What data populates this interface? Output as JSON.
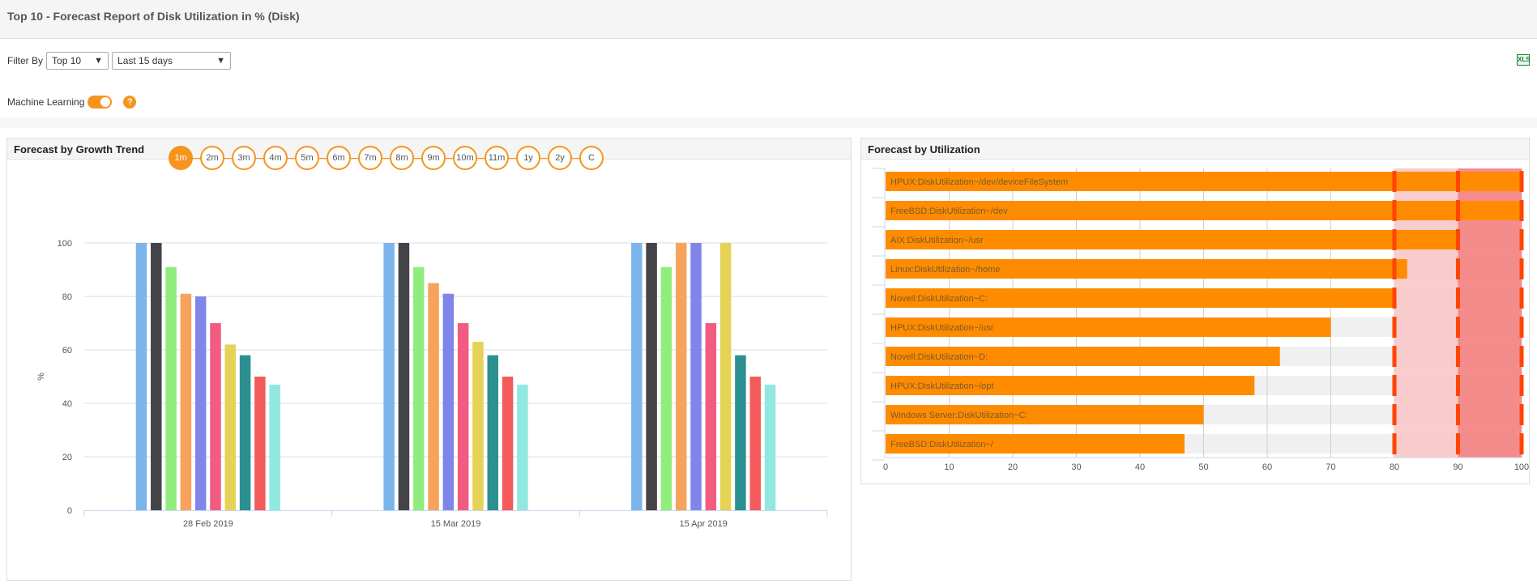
{
  "header": {
    "title": "Top 10 - Forecast Report of Disk Utilization in % (Disk)"
  },
  "filters": {
    "label": "Filter By",
    "top_select": "Top 10",
    "range_select": "Last 15 days",
    "excel_icon": "excel-export-icon",
    "excel_text": "XLS"
  },
  "machine_learning": {
    "label": "Machine Learning",
    "enabled": true,
    "help_text": "?"
  },
  "colors": {
    "accent": "#f7941d",
    "bar": "#ff8c00",
    "threshold_line": "#ff4500",
    "warning_zone": "#f8c8c8",
    "critical_zone": "#f47f80"
  },
  "growth_panel": {
    "title": "Forecast by Growth Trend",
    "periods": [
      "1m",
      "2m",
      "3m",
      "4m",
      "5m",
      "6m",
      "7m",
      "8m",
      "9m",
      "10m",
      "11m",
      "1y",
      "2y",
      "C"
    ],
    "active_period": "1m"
  },
  "util_panel": {
    "title": "Forecast by Utilization"
  },
  "chart_data": [
    {
      "type": "bar",
      "title": "Forecast by Growth Trend",
      "ylabel": "%",
      "xlabel": "",
      "ylim": [
        0,
        100
      ],
      "yticks": [
        0,
        20,
        40,
        60,
        80,
        100
      ],
      "grid": true,
      "categories": [
        "28 Feb 2019",
        "15 Mar 2019",
        "15 Apr 2019"
      ],
      "series": [
        {
          "color": "#7cb5ec",
          "values": [
            100,
            100,
            100
          ]
        },
        {
          "color": "#434348",
          "values": [
            100,
            100,
            100
          ]
        },
        {
          "color": "#90ed7d",
          "values": [
            91,
            91,
            91
          ]
        },
        {
          "color": "#f7a35c",
          "values": [
            81,
            85,
            100
          ]
        },
        {
          "color": "#8085e9",
          "values": [
            80,
            81,
            100
          ]
        },
        {
          "color": "#f15c80",
          "values": [
            70,
            70,
            70
          ]
        },
        {
          "color": "#e4d354",
          "values": [
            62,
            63,
            100
          ]
        },
        {
          "color": "#2b908f",
          "values": [
            58,
            58,
            58
          ]
        },
        {
          "color": "#f45b5b",
          "values": [
            50,
            50,
            50
          ]
        },
        {
          "color": "#91e8e1",
          "values": [
            47,
            47,
            47
          ]
        }
      ]
    },
    {
      "type": "bar",
      "orientation": "horizontal",
      "title": "Forecast by Utilization",
      "xlim": [
        0,
        100
      ],
      "xticks": [
        0,
        10,
        20,
        30,
        40,
        50,
        60,
        70,
        80,
        90,
        100
      ],
      "warning_threshold": 80,
      "critical_threshold": 90,
      "categories": [
        "HPUX:DiskUtilization~/dev/deviceFileSystem",
        "FreeBSD:DiskUtilization~/dev",
        "AIX:DiskUtilization~/usr",
        "Linux:DiskUtilization~/home",
        "Novell:DiskUtilization~C:",
        "HPUX:DiskUtilization~/usr",
        "Novell:DiskUtilization~D:",
        "HPUX:DiskUtilization~/opt",
        "Windows Server:DiskUtilization~C:",
        "FreeBSD:DiskUtilization~/"
      ],
      "values": [
        100,
        100,
        90,
        82,
        80,
        70,
        62,
        58,
        50,
        47
      ]
    }
  ]
}
